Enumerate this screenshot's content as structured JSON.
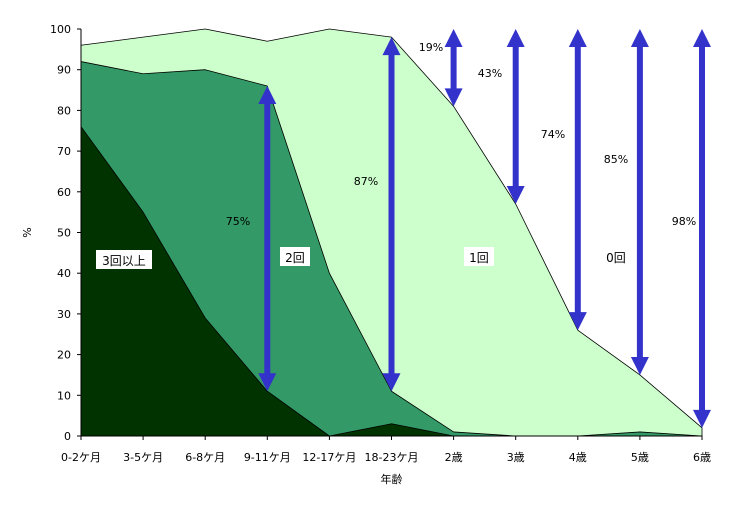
{
  "chart_data": {
    "type": "area",
    "stacked": true,
    "xlabel": "年齢",
    "ylabel": "%",
    "ylim": [
      0,
      100
    ],
    "yticks": [
      0,
      10,
      20,
      30,
      40,
      50,
      60,
      70,
      80,
      90,
      100
    ],
    "categories": [
      "0-2ケ月",
      "3-5ケ月",
      "6-8ケ月",
      "9-11ケ月",
      "12-17ケ月",
      "18-23ケ月",
      "2歳",
      "3歳",
      "4歳",
      "5歳",
      "6歳"
    ],
    "series": [
      {
        "name": "3回以上",
        "color": "#003300",
        "values": [
          76,
          55,
          29,
          11,
          0,
          3,
          0,
          0,
          0,
          0,
          0
        ]
      },
      {
        "name": "2回",
        "color": "#339966",
        "values": [
          92,
          89,
          90,
          86,
          40,
          11,
          1,
          0,
          0,
          1,
          0
        ]
      },
      {
        "name": "1回",
        "color": "#ccffcc",
        "values": [
          96,
          98,
          100,
          97,
          100,
          98,
          81,
          57,
          26,
          15,
          2
        ]
      },
      {
        "name": "0回",
        "color": "#ffffff",
        "values": [
          100,
          100,
          100,
          100,
          100,
          100,
          100,
          100,
          100,
          100,
          100
        ]
      }
    ],
    "annotations": [
      {
        "label": "75%",
        "category_index": 3,
        "from": 11,
        "to": 86
      },
      {
        "label": "87%",
        "category_index": 5,
        "from": 11,
        "to": 98
      },
      {
        "label": "19%",
        "category_index": 6,
        "from": 81,
        "to": 100
      },
      {
        "label": "43%",
        "category_index": 7,
        "from": 57,
        "to": 100
      },
      {
        "label": "74%",
        "category_index": 8,
        "from": 26,
        "to": 100
      },
      {
        "label": "85%",
        "category_index": 9,
        "from": 15,
        "to": 100
      },
      {
        "label": "98%",
        "category_index": 10,
        "from": 2,
        "to": 100
      }
    ],
    "arrow_color": "#3333cc",
    "grid": false
  }
}
